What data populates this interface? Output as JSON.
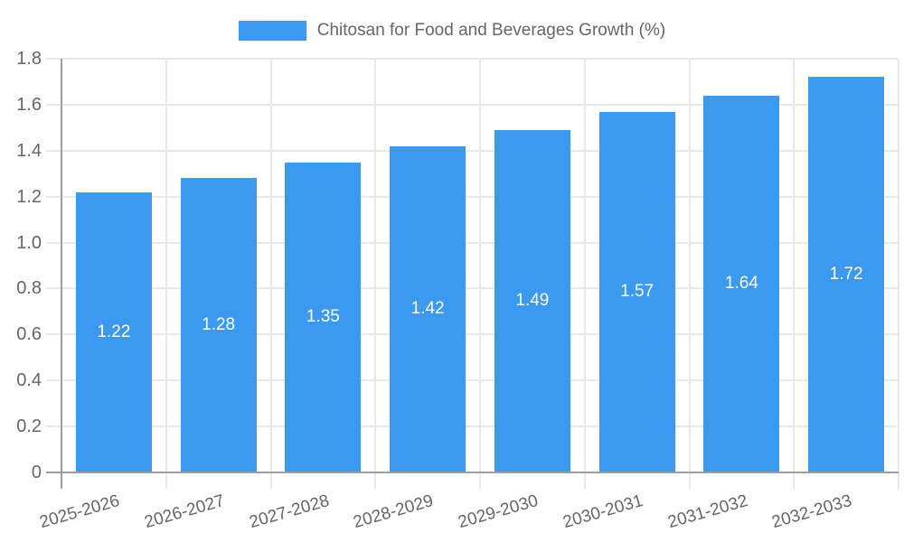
{
  "legend": {
    "label": "Chitosan for Food and Beverages Growth (%)"
  },
  "chart_data": {
    "type": "bar",
    "title": "Chitosan for Food and Beverages Growth (%)",
    "categories": [
      "2025-2026",
      "2026-2027",
      "2027-2028",
      "2028-2029",
      "2029-2030",
      "2030-2031",
      "2031-2032",
      "2032-2033"
    ],
    "values": [
      1.22,
      1.28,
      1.35,
      1.42,
      1.49,
      1.57,
      1.64,
      1.72
    ],
    "value_labels": [
      "1.22",
      "1.28",
      "1.35",
      "1.42",
      "1.49",
      "1.57",
      "1.64",
      "1.72"
    ],
    "xlabel": "",
    "ylabel": "",
    "ylim": [
      0,
      1.8
    ],
    "ytick_step": 0.2,
    "yticks": [
      "0",
      "0.2",
      "0.4",
      "0.6",
      "0.8",
      "1.0",
      "1.2",
      "1.4",
      "1.6",
      "1.8"
    ],
    "grid": true,
    "legend_position": "top",
    "colors": {
      "bar": "#3b99f0",
      "grid": "#e8e8e8",
      "axis": "#9e9e9e",
      "tick_text": "#666666",
      "bar_label_text": "#ffffff"
    }
  }
}
